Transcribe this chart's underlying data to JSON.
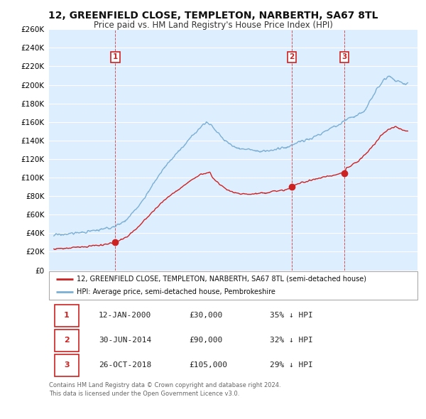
{
  "title": "12, GREENFIELD CLOSE, TEMPLETON, NARBERTH, SA67 8TL",
  "subtitle": "Price paid vs. HM Land Registry's House Price Index (HPI)",
  "title_fontsize": 10,
  "subtitle_fontsize": 8.5,
  "background_color": "#ffffff",
  "plot_bg_color": "#ddeeff",
  "grid_color": "#ffffff",
  "hpi_color": "#7bafd4",
  "price_color": "#cc2222",
  "legend_label_price": "12, GREENFIELD CLOSE, TEMPLETON, NARBERTH, SA67 8TL (semi-detached house)",
  "legend_label_hpi": "HPI: Average price, semi-detached house, Pembrokeshire",
  "sales": [
    {
      "label": "1",
      "date_str": "12-JAN-2000",
      "price": 30000,
      "below_pct": "35%",
      "year": 2000.04
    },
    {
      "label": "2",
      "date_str": "30-JUN-2014",
      "price": 90000,
      "below_pct": "32%",
      "year": 2014.5
    },
    {
      "label": "3",
      "date_str": "26-OCT-2018",
      "price": 105000,
      "below_pct": "29%",
      "year": 2018.82
    }
  ],
  "table_rows": [
    [
      "1",
      "12-JAN-2000",
      "£30,000",
      "35% ↓ HPI"
    ],
    [
      "2",
      "30-JUN-2014",
      "£90,000",
      "32% ↓ HPI"
    ],
    [
      "3",
      "26-OCT-2018",
      "£105,000",
      "29% ↓ HPI"
    ]
  ],
  "footer1": "Contains HM Land Registry data © Crown copyright and database right 2024.",
  "footer2": "This data is licensed under the Open Government Licence v3.0.",
  "ylim": [
    0,
    260000
  ],
  "ytick_step": 20000,
  "xmin": 1994.6,
  "xmax": 2024.8,
  "hpi_knots_x": [
    1995,
    1996,
    1997,
    1998,
    1999,
    2000,
    2001,
    2002,
    2003,
    2004,
    2005,
    2006,
    2007,
    2007.5,
    2008,
    2009,
    2010,
    2011,
    2012,
    2013,
    2014,
    2014.5,
    2015,
    2016,
    2017,
    2018,
    2018.5,
    2019,
    2020,
    2020.5,
    2021,
    2021.5,
    2022,
    2022.5,
    2023,
    2023.5,
    2024
  ],
  "hpi_knots_y": [
    38000,
    39000,
    40500,
    42000,
    44000,
    47000,
    55000,
    70000,
    90000,
    110000,
    125000,
    140000,
    155000,
    160000,
    155000,
    140000,
    132000,
    130000,
    128000,
    130000,
    132000,
    135000,
    138000,
    142000,
    148000,
    155000,
    158000,
    163000,
    168000,
    172000,
    185000,
    195000,
    205000,
    210000,
    205000,
    202000,
    200000
  ],
  "price_knots_x": [
    1995,
    1996,
    1997,
    1998,
    1999,
    2000,
    2001,
    2002,
    2003,
    2004,
    2005,
    2006,
    2007,
    2007.8,
    2008,
    2009,
    2010,
    2011,
    2012,
    2013,
    2014,
    2014.5,
    2015,
    2016,
    2017,
    2018,
    2018.82,
    2019,
    2020,
    2021,
    2022,
    2022.5,
    2023,
    2023.5,
    2024
  ],
  "price_knots_y": [
    23000,
    24000,
    25000,
    26000,
    27500,
    30000,
    36000,
    48000,
    62000,
    75000,
    85000,
    95000,
    103000,
    106000,
    100000,
    88000,
    83000,
    82000,
    83000,
    85000,
    87000,
    90000,
    93000,
    97000,
    100000,
    103000,
    105000,
    110000,
    118000,
    132000,
    148000,
    152000,
    155000,
    152000,
    150000
  ]
}
